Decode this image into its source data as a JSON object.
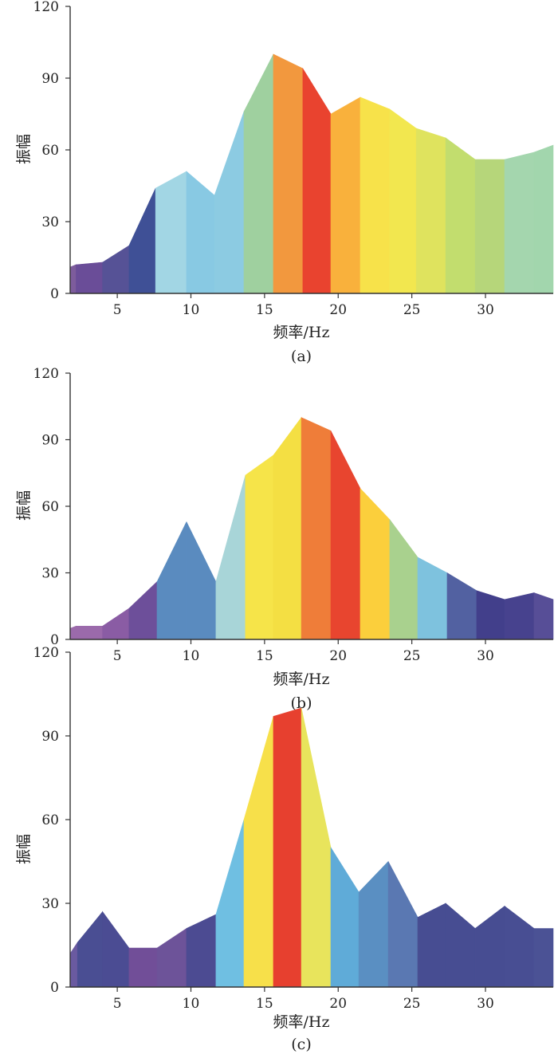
{
  "chart_data": [
    {
      "type": "area",
      "panel_label": "(a)",
      "xlabel": "频率/Hz",
      "ylabel": "振幅",
      "xlim": [
        1.8,
        34.6
      ],
      "ylim": [
        0,
        120
      ],
      "xticks": [
        5,
        10,
        15,
        20,
        25,
        30
      ],
      "yticks": [
        0,
        30,
        60,
        90,
        120
      ],
      "x": [
        1.8,
        2.2,
        4.0,
        5.8,
        7.6,
        9.7,
        11.6,
        13.6,
        15.6,
        17.6,
        19.5,
        21.5,
        23.5,
        25.3,
        27.3,
        29.3,
        31.3,
        33.3,
        34.6
      ],
      "values": [
        11,
        12,
        13,
        20,
        44,
        51,
        41,
        76,
        100,
        94,
        75,
        82,
        77,
        69,
        65,
        56,
        56,
        59,
        62
      ],
      "segment_colors": [
        "#7d5c9c",
        "#6a4d98",
        "#565296",
        "#3f5096",
        "#a2d6e4",
        "#88c9e3",
        "#8ccbe2",
        "#9fd09f",
        "#f2983e",
        "#e9432f",
        "#f9b13c",
        "#f7e24a",
        "#f2e74f",
        "#dfe35e",
        "#c2dd6e",
        "#b6d67a",
        "#a4d6ae",
        "#a2d6ad",
        "#a5d49d"
      ]
    },
    {
      "type": "area",
      "panel_label": "(b)",
      "xlabel": "频率/Hz",
      "ylabel": "振幅",
      "xlim": [
        1.8,
        34.6
      ],
      "ylim": [
        0,
        120
      ],
      "xticks": [
        5,
        10,
        15,
        20,
        25,
        30
      ],
      "yticks": [
        0,
        30,
        60,
        90,
        120
      ],
      "x": [
        1.8,
        2.2,
        4.0,
        5.8,
        7.7,
        9.7,
        11.7,
        13.7,
        15.6,
        17.5,
        19.5,
        21.5,
        23.5,
        25.4,
        27.4,
        29.4,
        31.3,
        33.3,
        34.6
      ],
      "values": [
        5,
        6,
        6,
        14,
        26,
        53,
        26,
        74,
        83,
        100,
        94,
        68,
        54,
        37,
        30,
        22,
        18,
        21,
        18
      ],
      "segment_colors": [
        "#9b6aab",
        "#9b6aab",
        "#8a5ca4",
        "#6d4f9a",
        "#5a8bbf",
        "#5a8bbf",
        "#a8d5d8",
        "#f6e449",
        "#f4df43",
        "#ef7d39",
        "#e8452f",
        "#fbcf3c",
        "#a9d18e",
        "#7ec2de",
        "#5261a1",
        "#423f8b",
        "#47428e",
        "#574e97",
        "#584b95"
      ]
    },
    {
      "type": "area",
      "panel_label": "(c)",
      "xlabel": "频率/Hz",
      "ylabel": "振幅",
      "xlim": [
        1.8,
        34.6
      ],
      "ylim": [
        0,
        120
      ],
      "xticks": [
        5,
        10,
        15,
        20,
        25,
        30
      ],
      "yticks": [
        0,
        30,
        60,
        90,
        120
      ],
      "x": [
        1.8,
        2.3,
        4.0,
        5.8,
        7.7,
        9.7,
        11.7,
        13.6,
        15.6,
        17.5,
        19.5,
        21.4,
        23.4,
        25.4,
        27.3,
        29.3,
        31.3,
        33.3,
        34.6
      ],
      "values": [
        12,
        16,
        27,
        14,
        14,
        21,
        26,
        60,
        97,
        100,
        50,
        34,
        45,
        25,
        30,
        21,
        29,
        21,
        21
      ],
      "segment_colors": [
        "#6a5aa0",
        "#4a4e93",
        "#4b4c93",
        "#714e98",
        "#6d5399",
        "#4c4b92",
        "#6fbfe2",
        "#f7e04a",
        "#e7402f",
        "#e8e45c",
        "#5fabd8",
        "#5a8fc2",
        "#5a78b2",
        "#474d92",
        "#474d92",
        "#474d92",
        "#484e93",
        "#4b5295",
        "#4b5295"
      ]
    }
  ]
}
